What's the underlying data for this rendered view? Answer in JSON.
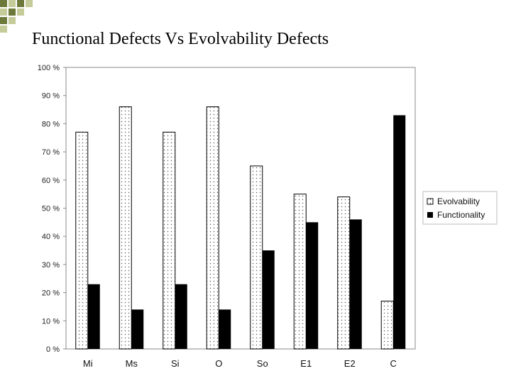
{
  "slide": {
    "title": "Functional Defects Vs Evolvability Defects",
    "accent_color": "#6b7a3a",
    "accent_light": "#c5cc9a"
  },
  "chart_data": {
    "type": "bar",
    "title": "",
    "xlabel": "",
    "ylabel": "",
    "ylim": [
      0,
      100
    ],
    "tick_suffix": " %",
    "yticks": [
      0,
      10,
      20,
      30,
      40,
      50,
      60,
      70,
      80,
      90,
      100
    ],
    "categories": [
      "Mi",
      "Ms",
      "Si",
      "O",
      "So",
      "E1",
      "E2",
      "C"
    ],
    "series": [
      {
        "name": "Evolvability",
        "pattern": "dotted",
        "values": [
          77,
          86,
          77,
          86,
          65,
          55,
          54,
          17
        ]
      },
      {
        "name": "Functionality",
        "pattern": "solid",
        "color": "#000000",
        "values": [
          23,
          14,
          23,
          14,
          35,
          45,
          46,
          83
        ]
      }
    ],
    "grid": false,
    "legend": "right"
  }
}
